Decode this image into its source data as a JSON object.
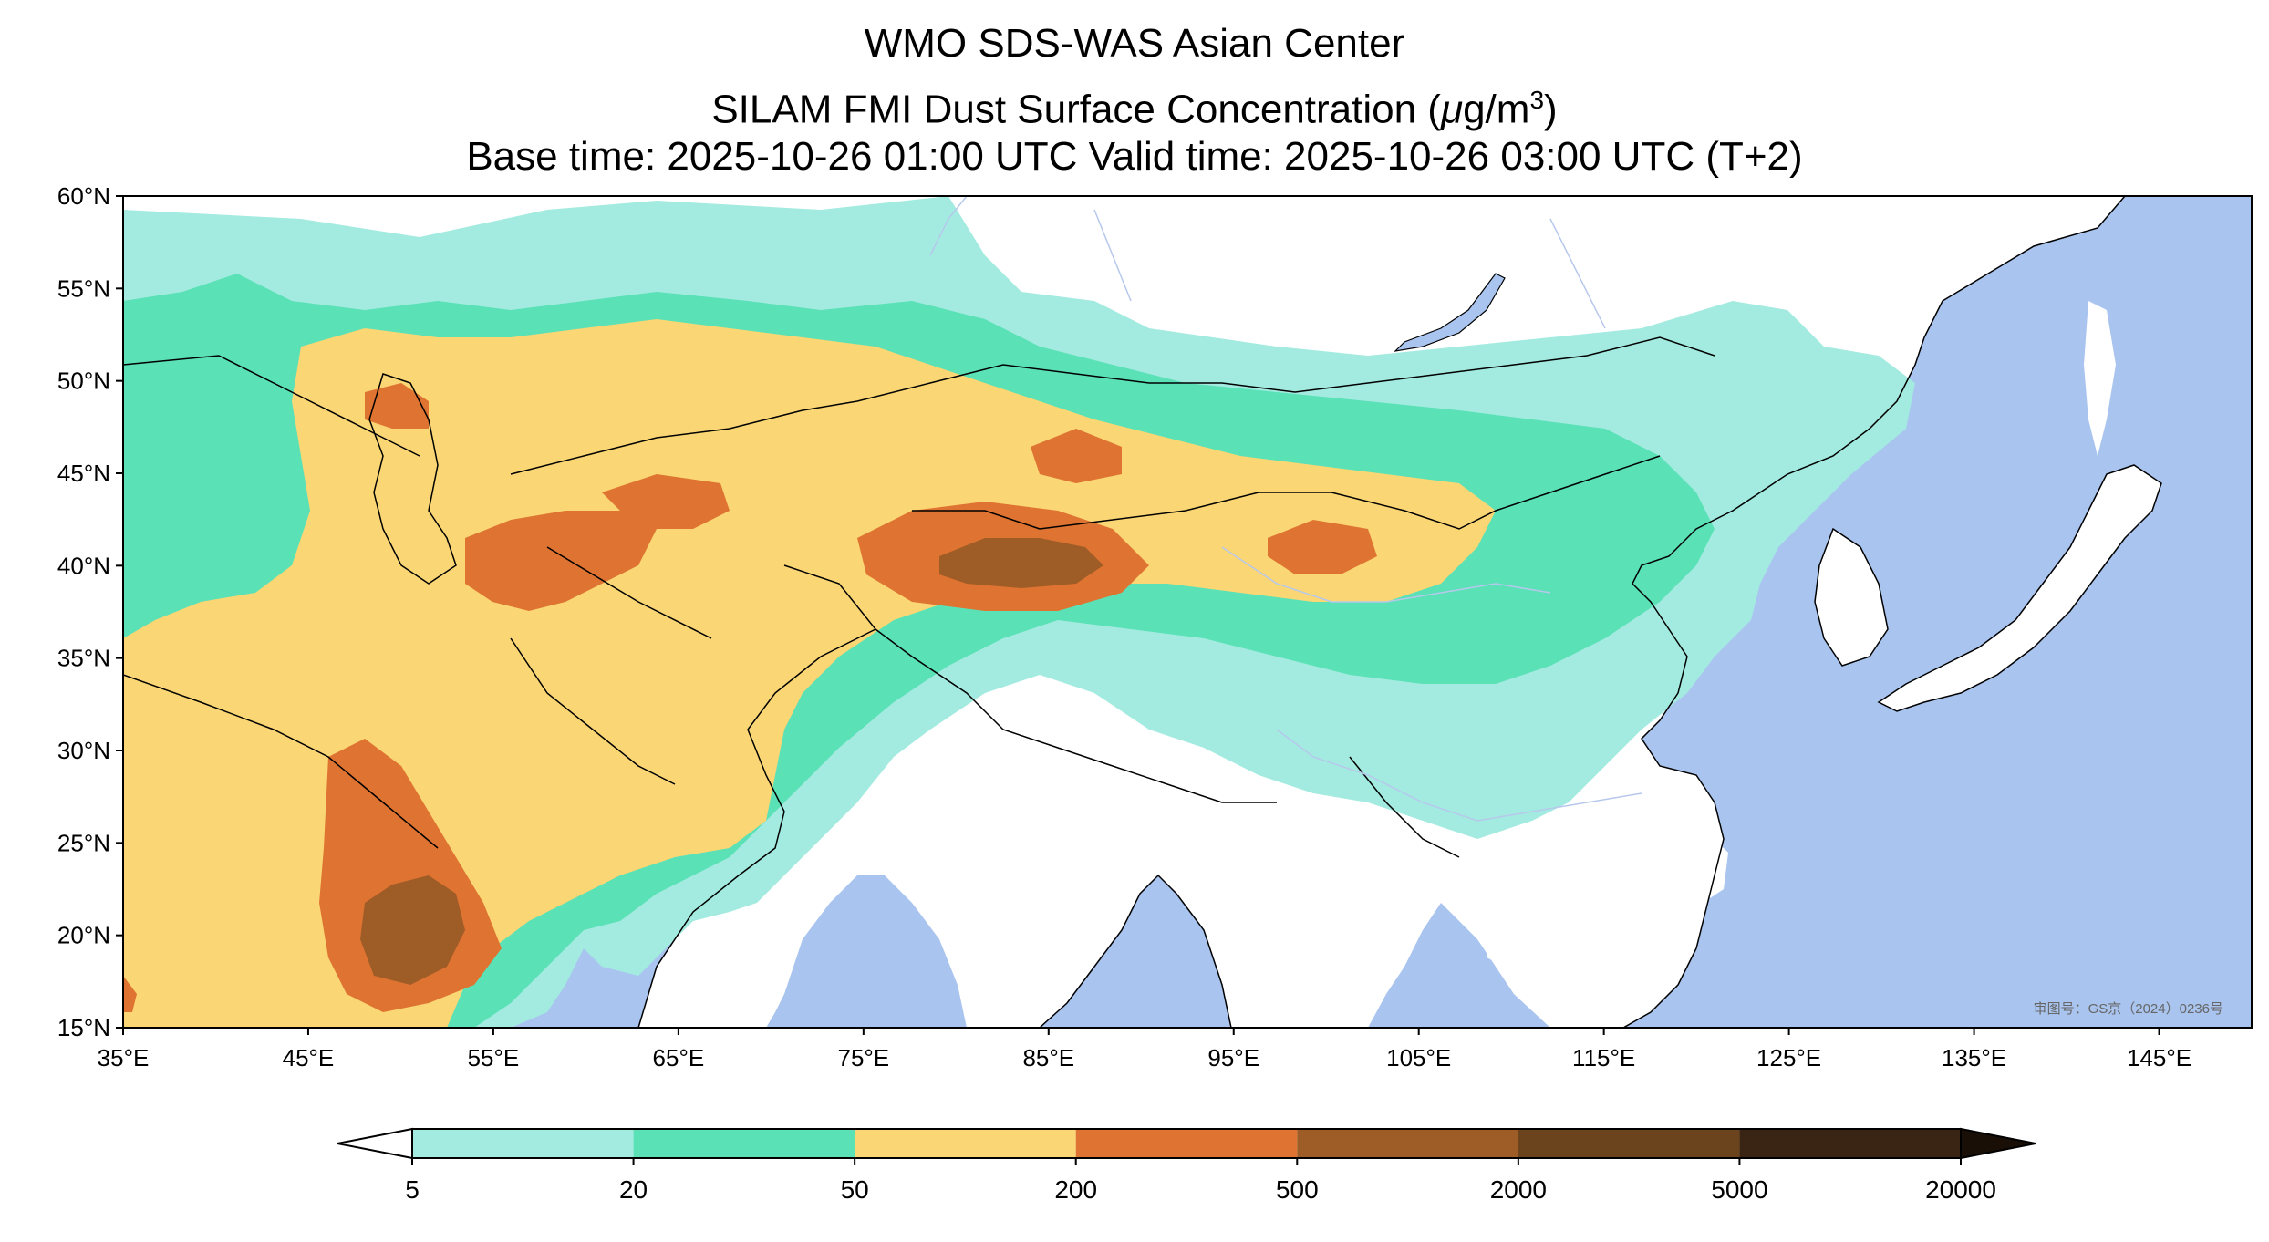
{
  "title": {
    "line1": "WMO SDS-WAS Asian Center",
    "line2_prefix": "SILAM FMI Dust Surface Concentration (",
    "line2_mu": "μ",
    "line2_unit": "g/m",
    "line2_sup": "3",
    "line2_suffix": ")",
    "line3": "Base time: 2025-10-26 01:00 UTC Valid time: 2025-10-26 03:00 UTC (T+2)"
  },
  "map": {
    "lat_ticks": [
      "60°N",
      "55°N",
      "50°N",
      "45°N",
      "40°N",
      "35°N",
      "30°N",
      "25°N",
      "20°N",
      "15°N"
    ],
    "lon_ticks": [
      "35°E",
      "45°E",
      "55°E",
      "65°E",
      "75°E",
      "85°E",
      "95°E",
      "105°E",
      "115°E",
      "125°E",
      "135°E",
      "145°E"
    ],
    "lat_range": [
      15,
      60
    ],
    "lon_range": [
      35,
      150
    ],
    "watermark": "审图号：GS京（2024）0236号",
    "colors": {
      "ocean": "#a9c4ee",
      "land": "#ffffff",
      "border": "#000000",
      "river": "#b7c8ec"
    }
  },
  "colorbar": {
    "boundaries": [
      "5",
      "20",
      "50",
      "200",
      "500",
      "2000",
      "5000",
      "20000"
    ],
    "colors": [
      "#a3ebe0",
      "#5ae1b6",
      "#fad675",
      "#df7331",
      "#9e5d27",
      "#6b431d",
      "#3a2414"
    ],
    "extend": "both",
    "under_color": "#ffffff",
    "over_color": "#1a0f07"
  }
}
